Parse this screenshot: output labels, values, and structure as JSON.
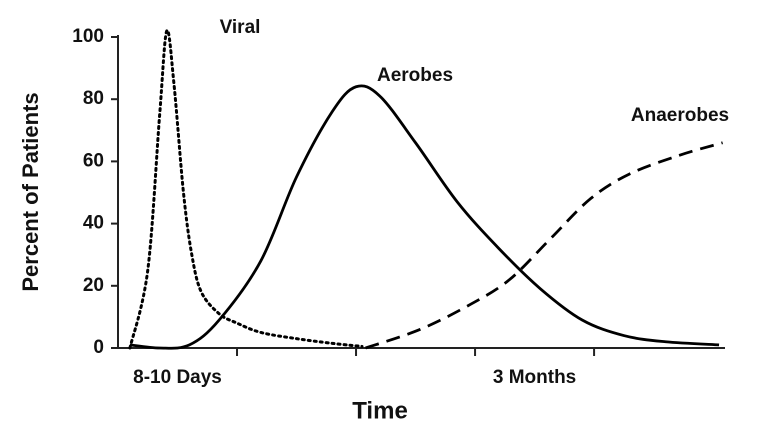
{
  "chart_data": {
    "type": "line",
    "xlabel": "Time",
    "ylabel": "Percent of Patients",
    "xlim": [
      0,
      5.1
    ],
    "ylim": [
      0,
      100
    ],
    "xticks": [
      1,
      2,
      3,
      4
    ],
    "yticks": [
      0,
      20,
      40,
      60,
      80,
      100
    ],
    "x_labels": [
      {
        "value": 0.5,
        "label": "8-10 Days"
      },
      {
        "value": 3.5,
        "label": "3 Months"
      }
    ],
    "grid": false,
    "series": [
      {
        "name": "Viral",
        "color": "#000000",
        "style": "dotted",
        "x": [
          0.1,
          0.25,
          0.35,
          0.41,
          0.47,
          0.55,
          0.62,
          0.7,
          0.85,
          1.0,
          1.2,
          1.5,
          1.8,
          2.05
        ],
        "values": [
          0,
          25,
          75,
          102,
          85,
          50,
          30,
          18,
          11,
          8,
          5,
          3,
          1.5,
          0.5
        ]
      },
      {
        "name": "Aerobes",
        "color": "#000000",
        "style": "solid",
        "x": [
          0.1,
          0.35,
          0.6,
          0.85,
          1.2,
          1.5,
          1.8,
          2.0,
          2.2,
          2.5,
          2.85,
          3.2,
          3.55,
          3.9,
          4.25,
          4.6,
          5.05
        ],
        "values": [
          1,
          0,
          1,
          9,
          28,
          55,
          76,
          84,
          81,
          66,
          47,
          32,
          19,
          9,
          4,
          2,
          1
        ]
      },
      {
        "name": "Anaerobes",
        "color": "#000000",
        "style": "dashed",
        "x": [
          2.08,
          2.54,
          2.96,
          3.29,
          3.63,
          3.97,
          4.3,
          4.72,
          5.08
        ],
        "values": [
          0,
          6,
          14,
          22,
          35,
          48,
          56,
          62,
          66
        ]
      }
    ]
  }
}
